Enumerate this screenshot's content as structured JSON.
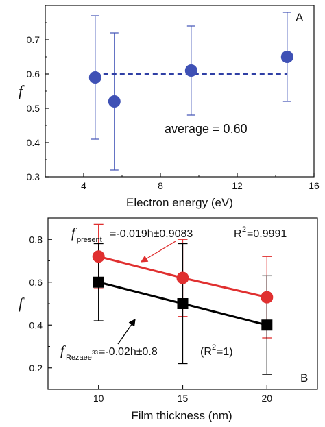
{
  "chart_data": [
    {
      "type": "scatter",
      "panel": "A",
      "xlabel": "Electron energy (eV)",
      "ylabel": "f",
      "xlim": [
        2,
        16
      ],
      "ylim": [
        0.3,
        0.8
      ],
      "xticks": [
        4,
        8,
        12,
        16
      ],
      "yticks": [
        0.3,
        0.4,
        0.5,
        0.6,
        0.7
      ],
      "series": [
        {
          "color": "#3f51b5",
          "points": [
            {
              "x": 4.6,
              "y": 0.59,
              "err": 0.18
            },
            {
              "x": 5.6,
              "y": 0.52,
              "err": 0.2
            },
            {
              "x": 9.6,
              "y": 0.61,
              "err": 0.13
            },
            {
              "x": 14.6,
              "y": 0.65,
              "err": 0.13
            }
          ]
        }
      ],
      "average_line": {
        "y": 0.6,
        "x_start": 4.6,
        "x_end": 14.6,
        "style": "dashed",
        "color": "#2f3fa5"
      },
      "annotation": "average = 0.60"
    },
    {
      "type": "line",
      "panel": "B",
      "xlabel": "Film thickness (nm)",
      "ylabel": "f",
      "xlim": [
        7,
        23
      ],
      "ylim": [
        0.1,
        0.9
      ],
      "xticks": [
        10,
        15,
        20
      ],
      "yticks": [
        0.2,
        0.4,
        0.6,
        0.8
      ],
      "series": [
        {
          "color": "#e03030",
          "marker": "circle",
          "x": [
            10,
            15,
            20
          ],
          "y": [
            0.72,
            0.62,
            0.53
          ],
          "err": [
            0.15,
            0.18,
            0.19
          ]
        },
        {
          "color": "#000000",
          "marker": "square",
          "x": [
            10,
            15,
            20
          ],
          "y": [
            0.6,
            0.5,
            0.4
          ],
          "err": [
            0.18,
            0.28,
            0.23
          ]
        }
      ],
      "annotations": {
        "present": {
          "f": "f",
          "sub": "present",
          "eq": "=-0.019h±0.9083",
          "r2_base": "R",
          "r2_sup": "2",
          "r2_val": "=0.9991"
        },
        "rezaee": {
          "f": "f",
          "sub": "Rezaee",
          "sup": "33",
          "eq": "=-0.02h±0.8",
          "r2_text": "(R",
          "r2_sup": "2",
          "r2_end": "=1)"
        }
      }
    }
  ]
}
